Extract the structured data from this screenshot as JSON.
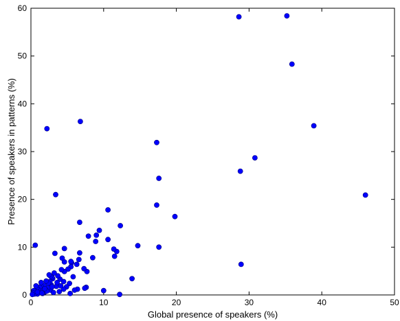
{
  "chart_data": {
    "type": "scatter",
    "title": "",
    "xlabel": "Global presence of speakers (%)",
    "ylabel": "Presence of speakers in patterns (%)",
    "xlim": [
      0,
      50
    ],
    "ylim": [
      0,
      60
    ],
    "xticks": [
      "0",
      "10",
      "20",
      "30",
      "40",
      "50"
    ],
    "yticks": [
      "0",
      "10",
      "20",
      "30",
      "40",
      "50",
      "60"
    ],
    "grid": false,
    "marker_color": "#0000ff",
    "marker_edge_color": "#00007a",
    "points": [
      [
        28.6,
        58.2
      ],
      [
        35.2,
        58.4
      ],
      [
        35.9,
        48.3
      ],
      [
        38.9,
        35.4
      ],
      [
        46.0,
        20.9
      ],
      [
        30.8,
        28.7
      ],
      [
        28.8,
        25.9
      ],
      [
        28.9,
        6.4
      ],
      [
        17.3,
        31.9
      ],
      [
        17.6,
        24.4
      ],
      [
        17.3,
        18.8
      ],
      [
        19.8,
        16.4
      ],
      [
        17.6,
        10.0
      ],
      [
        14.7,
        10.3
      ],
      [
        13.9,
        3.4
      ],
      [
        12.3,
        14.5
      ],
      [
        12.2,
        0.1
      ],
      [
        11.8,
        9.1
      ],
      [
        11.4,
        9.6
      ],
      [
        11.5,
        8.1
      ],
      [
        10.6,
        17.8
      ],
      [
        10.6,
        11.6
      ],
      [
        10.0,
        0.9
      ],
      [
        9.4,
        13.5
      ],
      [
        9.0,
        12.5
      ],
      [
        8.9,
        11.2
      ],
      [
        8.5,
        7.8
      ],
      [
        7.9,
        12.3
      ],
      [
        7.7,
        4.9
      ],
      [
        7.6,
        1.6
      ],
      [
        7.4,
        1.4
      ],
      [
        7.3,
        5.5
      ],
      [
        6.8,
        36.3
      ],
      [
        6.7,
        15.2
      ],
      [
        6.7,
        8.8
      ],
      [
        6.6,
        7.4
      ],
      [
        6.3,
        6.4
      ],
      [
        6.4,
        1.2
      ],
      [
        6.0,
        1.0
      ],
      [
        5.8,
        3.8
      ],
      [
        5.6,
        6.7
      ],
      [
        5.5,
        7.0
      ],
      [
        5.5,
        5.9
      ],
      [
        5.3,
        2.4
      ],
      [
        5.4,
        0.3
      ],
      [
        5.1,
        5.4
      ],
      [
        4.9,
        1.7
      ],
      [
        4.6,
        9.7
      ],
      [
        4.6,
        6.9
      ],
      [
        4.6,
        4.9
      ],
      [
        4.5,
        2.8
      ],
      [
        4.5,
        1.2
      ],
      [
        4.3,
        7.7
      ],
      [
        4.2,
        5.3
      ],
      [
        4.0,
        3.3
      ],
      [
        3.9,
        0.7
      ],
      [
        3.7,
        4.0
      ],
      [
        3.5,
        1.8
      ],
      [
        3.4,
        21.0
      ],
      [
        3.3,
        8.7
      ],
      [
        3.2,
        4.6
      ],
      [
        3.0,
        3.4
      ],
      [
        2.9,
        3.7
      ],
      [
        2.8,
        2.1
      ],
      [
        2.7,
        1.0
      ],
      [
        2.7,
        3.9
      ],
      [
        2.6,
        2.8
      ],
      [
        2.5,
        4.2
      ],
      [
        2.4,
        2.5
      ],
      [
        2.3,
        1.5
      ],
      [
        2.2,
        34.8
      ],
      [
        2.1,
        2.9
      ],
      [
        2.0,
        1.1
      ],
      [
        1.9,
        0.6
      ],
      [
        1.8,
        2.0
      ],
      [
        1.7,
        1.3
      ],
      [
        1.6,
        0.3
      ],
      [
        1.4,
        1.8
      ],
      [
        1.3,
        0.9
      ],
      [
        1.2,
        1.6
      ],
      [
        1.1,
        0.5
      ],
      [
        1.0,
        1.1
      ],
      [
        0.9,
        0.2
      ],
      [
        0.8,
        1.4
      ],
      [
        0.6,
        10.4
      ],
      [
        0.6,
        0.7
      ],
      [
        0.5,
        0.2
      ],
      [
        0.4,
        0.9
      ],
      [
        0.3,
        0.4
      ],
      [
        0.2,
        0.1
      ],
      [
        0.9,
        0.6
      ],
      [
        1.5,
        0.4
      ],
      [
        2.2,
        0.8
      ],
      [
        3.1,
        0.5
      ],
      [
        3.6,
        2.6
      ],
      [
        4.1,
        1.9
      ],
      [
        2.9,
        1.7
      ],
      [
        1.9,
        1.3
      ],
      [
        0.7,
        1.9
      ],
      [
        1.4,
        2.6
      ]
    ]
  }
}
